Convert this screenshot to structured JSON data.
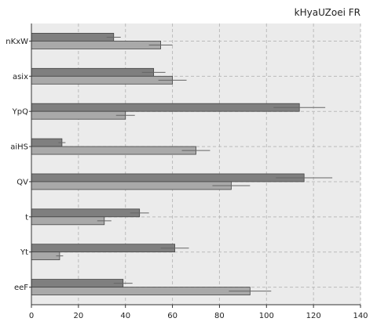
{
  "chart_data": {
    "type": "bar",
    "orientation": "horizontal",
    "title": "kHyaUZoei FR",
    "xlabel": "",
    "ylabel": "",
    "xlim": [
      0,
      140
    ],
    "xticks": [
      0,
      20,
      40,
      60,
      80,
      100,
      120,
      140
    ],
    "grid": true,
    "legend": "none",
    "categories": [
      "nKxW",
      "asix",
      "YpQ",
      "aiHS",
      "QV",
      "t",
      "Yt",
      "eeF"
    ],
    "series": [
      {
        "color": "#7f7f7f",
        "values": [
          35,
          52,
          114,
          13,
          116,
          46,
          61,
          39
        ],
        "errors": [
          3,
          5,
          11,
          1.5,
          12,
          4,
          6,
          4
        ]
      },
      {
        "color": "#a9a9a9",
        "values": [
          55,
          60,
          40,
          70,
          85,
          31,
          12,
          93
        ],
        "errors": [
          5,
          6,
          4,
          6,
          8,
          3,
          1.5,
          9
        ]
      }
    ],
    "colors": {
      "plot_background": "#ebebeb",
      "grid": "#bbbbbb",
      "edge": "#444444",
      "error_bar": "#666666"
    }
  }
}
